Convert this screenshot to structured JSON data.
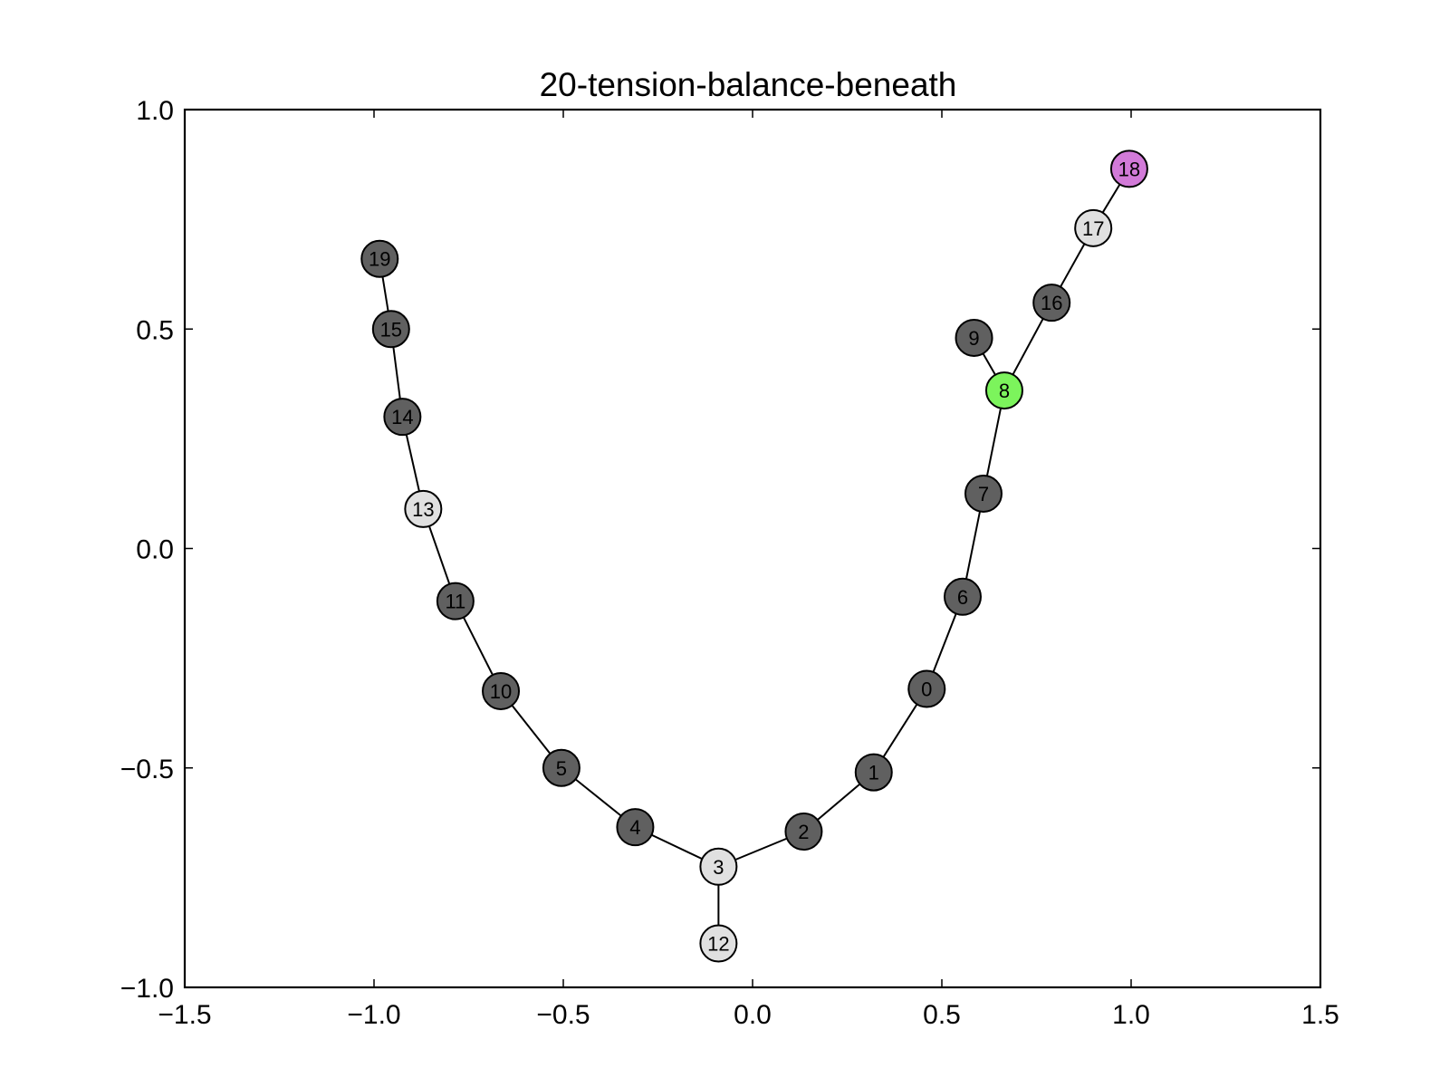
{
  "chart_data": {
    "type": "scatter",
    "title": "20-tension-balance-beneath",
    "xlabel": "",
    "ylabel": "",
    "xlim": [
      -1.5,
      1.5
    ],
    "ylim": [
      -1.0,
      1.0
    ],
    "xticks": [
      -1.5,
      -1.0,
      -0.5,
      0.0,
      0.5,
      1.0,
      1.5
    ],
    "yticks": [
      -1.0,
      -0.5,
      0.0,
      0.5,
      1.0
    ],
    "xtick_labels": [
      "−1.5",
      "−1.0",
      "−0.5",
      "0.0",
      "0.5",
      "1.0",
      "1.5"
    ],
    "ytick_labels": [
      "−1.0",
      "−0.5",
      "0.0",
      "0.5",
      "1.0"
    ],
    "grid": false,
    "colors": {
      "dark": "#606060",
      "light": "#e0e0e0",
      "green": "#7cf45c",
      "purple": "#d27ad8"
    },
    "nodes": [
      {
        "id": "0",
        "x": 0.46,
        "y": -0.32,
        "color": "#606060"
      },
      {
        "id": "1",
        "x": 0.32,
        "y": -0.51,
        "color": "#606060"
      },
      {
        "id": "2",
        "x": 0.135,
        "y": -0.645,
        "color": "#606060"
      },
      {
        "id": "3",
        "x": -0.09,
        "y": -0.725,
        "color": "#e0e0e0"
      },
      {
        "id": "4",
        "x": -0.31,
        "y": -0.635,
        "color": "#606060"
      },
      {
        "id": "5",
        "x": -0.505,
        "y": -0.5,
        "color": "#606060"
      },
      {
        "id": "6",
        "x": 0.555,
        "y": -0.11,
        "color": "#606060"
      },
      {
        "id": "7",
        "x": 0.61,
        "y": 0.125,
        "color": "#606060"
      },
      {
        "id": "8",
        "x": 0.665,
        "y": 0.36,
        "color": "#7cf45c"
      },
      {
        "id": "9",
        "x": 0.585,
        "y": 0.48,
        "color": "#606060"
      },
      {
        "id": "10",
        "x": -0.665,
        "y": -0.325,
        "color": "#606060"
      },
      {
        "id": "11",
        "x": -0.785,
        "y": -0.12,
        "color": "#606060"
      },
      {
        "id": "12",
        "x": -0.09,
        "y": -0.9,
        "color": "#e0e0e0"
      },
      {
        "id": "13",
        "x": -0.87,
        "y": 0.09,
        "color": "#e0e0e0"
      },
      {
        "id": "14",
        "x": -0.925,
        "y": 0.3,
        "color": "#606060"
      },
      {
        "id": "15",
        "x": -0.955,
        "y": 0.5,
        "color": "#606060"
      },
      {
        "id": "16",
        "x": 0.79,
        "y": 0.56,
        "color": "#606060"
      },
      {
        "id": "17",
        "x": 0.9,
        "y": 0.73,
        "color": "#e0e0e0"
      },
      {
        "id": "18",
        "x": 0.995,
        "y": 0.865,
        "color": "#d27ad8"
      },
      {
        "id": "19",
        "x": -0.985,
        "y": 0.66,
        "color": "#606060"
      }
    ],
    "edges": [
      [
        "19",
        "15"
      ],
      [
        "15",
        "14"
      ],
      [
        "14",
        "13"
      ],
      [
        "13",
        "11"
      ],
      [
        "11",
        "10"
      ],
      [
        "10",
        "5"
      ],
      [
        "5",
        "4"
      ],
      [
        "4",
        "3"
      ],
      [
        "3",
        "12"
      ],
      [
        "3",
        "2"
      ],
      [
        "2",
        "1"
      ],
      [
        "1",
        "0"
      ],
      [
        "0",
        "6"
      ],
      [
        "6",
        "7"
      ],
      [
        "7",
        "8"
      ],
      [
        "8",
        "9"
      ],
      [
        "8",
        "16"
      ],
      [
        "16",
        "17"
      ],
      [
        "17",
        "18"
      ]
    ]
  }
}
